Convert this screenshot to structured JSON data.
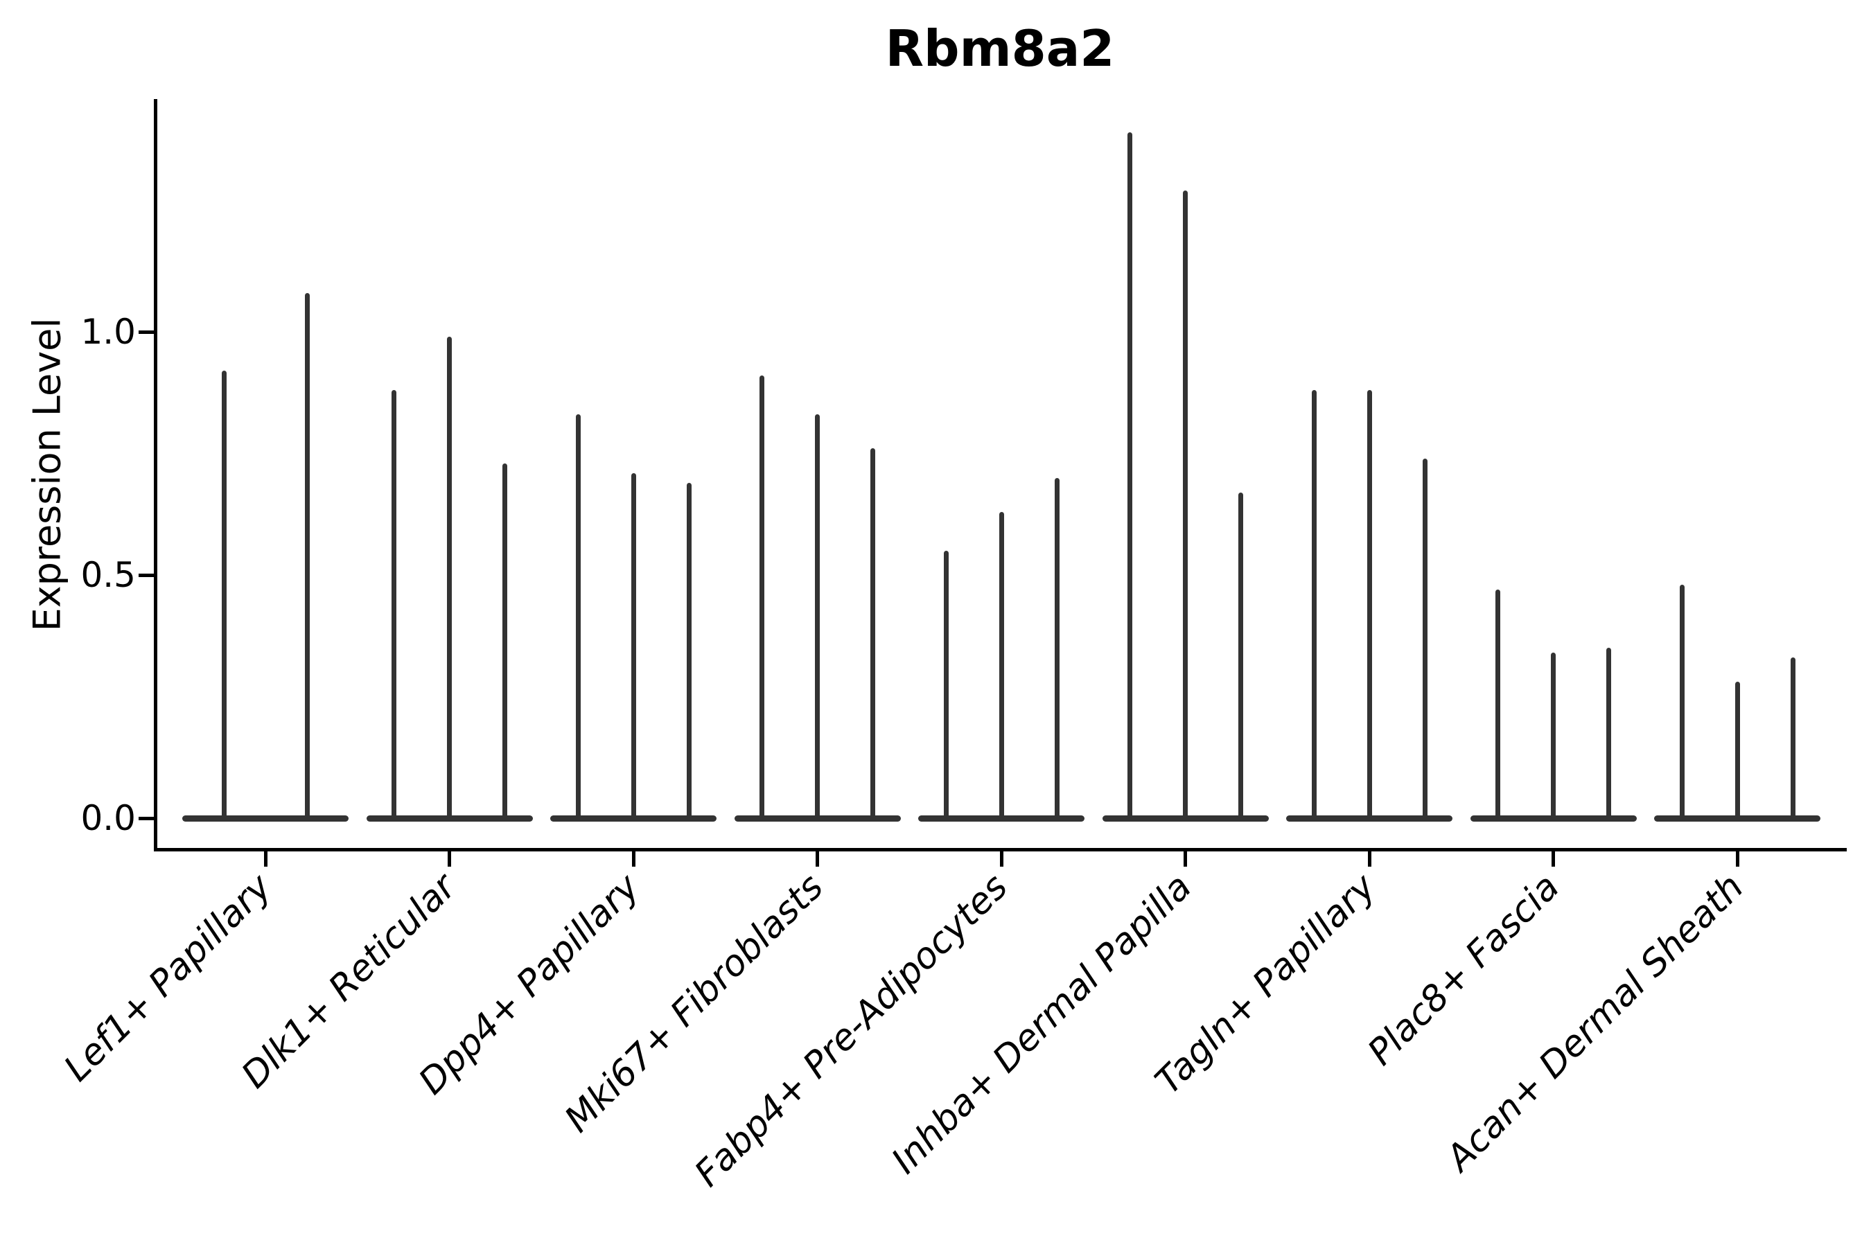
{
  "chart_data": {
    "type": "violin",
    "title": "Rbm8a2",
    "xlabel": "",
    "ylabel": "Expression Level",
    "yticks": [
      0.0,
      0.5,
      1.0
    ],
    "ytick_labels": [
      "0.0",
      "0.5",
      "1.0"
    ],
    "ylim": [
      -0.06,
      1.48
    ],
    "grid": false,
    "legend": "none",
    "x_tick_rotation": 45,
    "line_color": "#333333",
    "axis_color": "#000000",
    "categories": [
      "Lef1+ Papillary",
      "Dlk1+ Reticular",
      "Dpp4+ Papillary",
      "Mki67+ Fibroblasts",
      "Fabp4+ Pre-Adipocytes",
      "Inhba+ Dermal Papilla",
      "Tagln+ Papillary",
      "Plac8+ Fascia",
      "Acan+ Dermal Sheath"
    ],
    "groups": [
      {
        "category": "Lef1+ Papillary",
        "violin_peaks": [
          0.92,
          1.08
        ]
      },
      {
        "category": "Dlk1+ Reticular",
        "violin_peaks": [
          0.88,
          0.99,
          0.73
        ]
      },
      {
        "category": "Dpp4+ Papillary",
        "violin_peaks": [
          0.83,
          0.71,
          0.69
        ]
      },
      {
        "category": "Mki67+ Fibroblasts",
        "violin_peaks": [
          0.91,
          0.83,
          0.76
        ]
      },
      {
        "category": "Fabp4+ Pre-Adipocytes",
        "violin_peaks": [
          0.55,
          0.63,
          0.7
        ]
      },
      {
        "category": "Inhba+ Dermal Papilla",
        "violin_peaks": [
          1.41,
          1.29,
          0.67
        ]
      },
      {
        "category": "Tagln+ Papillary",
        "violin_peaks": [
          0.88,
          0.88,
          0.74
        ]
      },
      {
        "category": "Plac8+ Fascia",
        "violin_peaks": [
          0.47,
          0.34,
          0.35
        ]
      },
      {
        "category": "Acan+ Dermal Sheath",
        "violin_peaks": [
          0.48,
          0.28,
          0.33
        ]
      }
    ],
    "description": "Needle-thin violin plot; density is concentrated at 0 (wide flat base) with a thin spike up to each violin's maximum expression value."
  }
}
